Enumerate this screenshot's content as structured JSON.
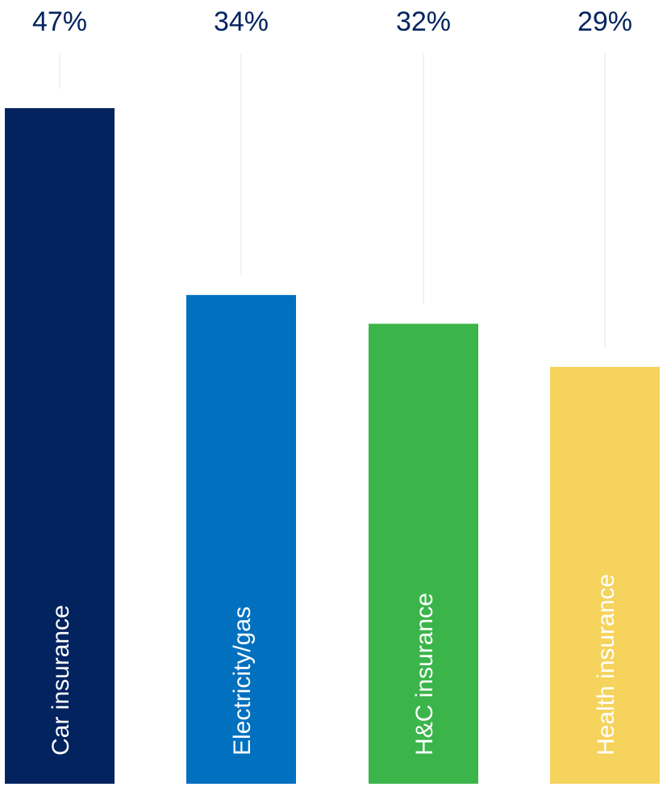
{
  "chart_data": {
    "type": "bar",
    "categories": [
      "Car insurance",
      "Electricity/gas",
      "H&C insurance",
      "Health insurance"
    ],
    "values": [
      47,
      34,
      32,
      29
    ],
    "value_labels": [
      "47%",
      "34%",
      "32%",
      "29%"
    ],
    "colors": [
      "#03235f",
      "#0070bf",
      "#3bb54a",
      "#f5d35c"
    ],
    "value_label_color": "#03235f",
    "guide_line_color": "#e3e3e3",
    "grid": false,
    "legend": "none",
    "category_label_orientation": "vertical-inside-bar",
    "ylim": [
      0,
      53.4
    ]
  }
}
